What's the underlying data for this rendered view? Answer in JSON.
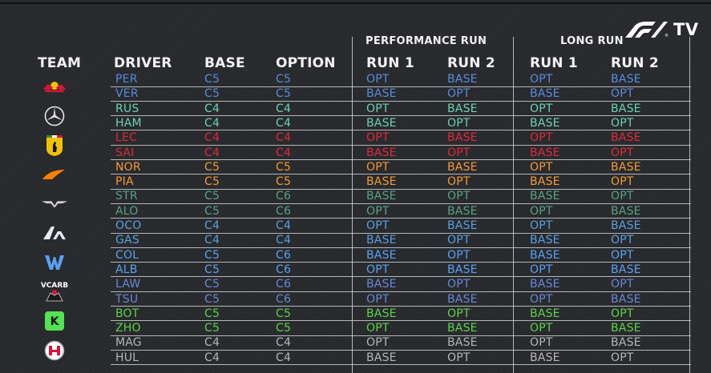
{
  "branding": {
    "logo_text": "F1",
    "tv_label": "TV"
  },
  "group_headers": {
    "performance_run": "PERFORMANCE RUN",
    "long_run": "LONG RUN"
  },
  "column_headers": {
    "team": "TEAM",
    "driver": "DRIVER",
    "base": "BASE",
    "option": "OPTION",
    "perf_run1": "RUN 1",
    "perf_run2": "RUN 2",
    "long_run1": "RUN 1",
    "long_run2": "RUN 2"
  },
  "team_colors": {
    "red-bull": "#5b8be0",
    "mercedes": "#6cd3b0",
    "ferrari": "#e1283c",
    "mclaren": "#f59a32",
    "aston-martin": "#5aa383",
    "alpine": "#5d9ee0",
    "williams": "#5aa1f5",
    "vcarb": "#6a87d8",
    "sauber": "#5fd24a",
    "haas": "#b6b6b6"
  },
  "teams": [
    {
      "id": "red-bull",
      "icon": "red-bull-logo-icon",
      "drivers": [
        {
          "driver": "PER",
          "base": "C5",
          "option": "C5",
          "perf_run1": "OPT",
          "perf_run2": "BASE",
          "long_run1": "OPT",
          "long_run2": "BASE"
        },
        {
          "driver": "VER",
          "base": "C5",
          "option": "C5",
          "perf_run1": "BASE",
          "perf_run2": "OPT",
          "long_run1": "BASE",
          "long_run2": "OPT"
        }
      ]
    },
    {
      "id": "mercedes",
      "icon": "mercedes-logo-icon",
      "drivers": [
        {
          "driver": "RUS",
          "base": "C4",
          "option": "C4",
          "perf_run1": "OPT",
          "perf_run2": "BASE",
          "long_run1": "OPT",
          "long_run2": "BASE"
        },
        {
          "driver": "HAM",
          "base": "C4",
          "option": "C4",
          "perf_run1": "BASE",
          "perf_run2": "OPT",
          "long_run1": "BASE",
          "long_run2": "OPT"
        }
      ]
    },
    {
      "id": "ferrari",
      "icon": "ferrari-logo-icon",
      "drivers": [
        {
          "driver": "LEC",
          "base": "C4",
          "option": "C4",
          "perf_run1": "OPT",
          "perf_run2": "BASE",
          "long_run1": "OPT",
          "long_run2": "BASE"
        },
        {
          "driver": "SAI",
          "base": "C4",
          "option": "C4",
          "perf_run1": "BASE",
          "perf_run2": "OPT",
          "long_run1": "BASE",
          "long_run2": "OPT"
        }
      ]
    },
    {
      "id": "mclaren",
      "icon": "mclaren-logo-icon",
      "drivers": [
        {
          "driver": "NOR",
          "base": "C5",
          "option": "C5",
          "perf_run1": "OPT",
          "perf_run2": "BASE",
          "long_run1": "OPT",
          "long_run2": "BASE"
        },
        {
          "driver": "PIA",
          "base": "C5",
          "option": "C5",
          "perf_run1": "BASE",
          "perf_run2": "OPT",
          "long_run1": "BASE",
          "long_run2": "OPT"
        }
      ]
    },
    {
      "id": "aston-martin",
      "icon": "aston-martin-logo-icon",
      "drivers": [
        {
          "driver": "STR",
          "base": "C5",
          "option": "C6",
          "perf_run1": "BASE",
          "perf_run2": "OPT",
          "long_run1": "BASE",
          "long_run2": "OPT"
        },
        {
          "driver": "ALO",
          "base": "C5",
          "option": "C6",
          "perf_run1": "OPT",
          "perf_run2": "BASE",
          "long_run1": "OPT",
          "long_run2": "BASE"
        }
      ]
    },
    {
      "id": "alpine",
      "icon": "alpine-logo-icon",
      "drivers": [
        {
          "driver": "OCO",
          "base": "C4",
          "option": "C4",
          "perf_run1": "OPT",
          "perf_run2": "BASE",
          "long_run1": "OPT",
          "long_run2": "BASE"
        },
        {
          "driver": "GAS",
          "base": "C4",
          "option": "C4",
          "perf_run1": "BASE",
          "perf_run2": "OPT",
          "long_run1": "BASE",
          "long_run2": "OPT"
        }
      ]
    },
    {
      "id": "williams",
      "icon": "williams-logo-icon",
      "drivers": [
        {
          "driver": "COL",
          "base": "C5",
          "option": "C6",
          "perf_run1": "BASE",
          "perf_run2": "OPT",
          "long_run1": "BASE",
          "long_run2": "OPT"
        },
        {
          "driver": "ALB",
          "base": "C5",
          "option": "C6",
          "perf_run1": "OPT",
          "perf_run2": "BASE",
          "long_run1": "OPT",
          "long_run2": "BASE"
        }
      ]
    },
    {
      "id": "vcarb",
      "icon": "vcarb-logo-icon",
      "logo_text": "VCARB",
      "drivers": [
        {
          "driver": "LAW",
          "base": "C5",
          "option": "C6",
          "perf_run1": "BASE",
          "perf_run2": "OPT",
          "long_run1": "BASE",
          "long_run2": "OPT"
        },
        {
          "driver": "TSU",
          "base": "C5",
          "option": "C6",
          "perf_run1": "OPT",
          "perf_run2": "BASE",
          "long_run1": "OPT",
          "long_run2": "BASE"
        }
      ]
    },
    {
      "id": "sauber",
      "icon": "kick-sauber-logo-icon",
      "drivers": [
        {
          "driver": "BOT",
          "base": "C5",
          "option": "C5",
          "perf_run1": "BASE",
          "perf_run2": "OPT",
          "long_run1": "BASE",
          "long_run2": "OPT"
        },
        {
          "driver": "ZHO",
          "base": "C5",
          "option": "C5",
          "perf_run1": "OPT",
          "perf_run2": "BASE",
          "long_run1": "OPT",
          "long_run2": "BASE"
        }
      ]
    },
    {
      "id": "haas",
      "icon": "haas-logo-icon",
      "drivers": [
        {
          "driver": "MAG",
          "base": "C4",
          "option": "C4",
          "perf_run1": "OPT",
          "perf_run2": "BASE",
          "long_run1": "OPT",
          "long_run2": "BASE"
        },
        {
          "driver": "HUL",
          "base": "C4",
          "option": "C4",
          "perf_run1": "BASE",
          "perf_run2": "OPT",
          "long_run1": "BASE",
          "long_run2": "OPT"
        }
      ]
    }
  ]
}
